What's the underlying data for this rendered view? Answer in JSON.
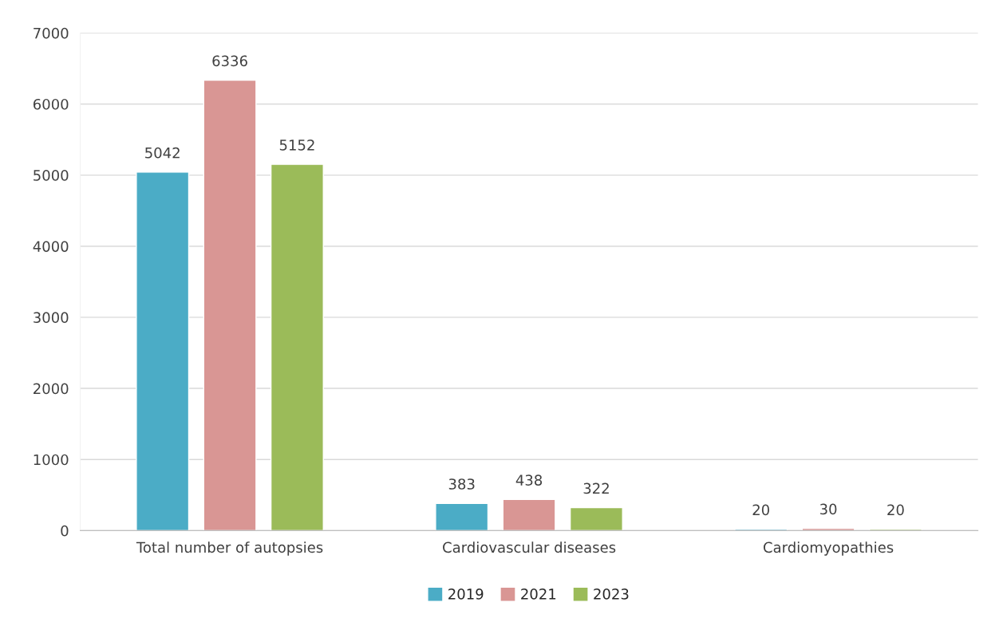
{
  "chart_data": {
    "type": "bar",
    "categories": [
      "Total number of autopsies",
      "Cardiovascular diseases",
      "Cardiomyopathies"
    ],
    "series": [
      {
        "name": "2019",
        "color": "#4bacc6",
        "values": [
          5042,
          383,
          20
        ]
      },
      {
        "name": "2021",
        "color": "#d99694",
        "values": [
          6336,
          438,
          30
        ]
      },
      {
        "name": "2023",
        "color": "#9bbb59",
        "values": [
          5152,
          322,
          20
        ]
      }
    ],
    "ylim": [
      0,
      7000
    ],
    "yticks": [
      0,
      1000,
      2000,
      3000,
      4000,
      5000,
      6000,
      7000
    ],
    "grid": "y",
    "legend": "bottom",
    "data_labels": true
  }
}
